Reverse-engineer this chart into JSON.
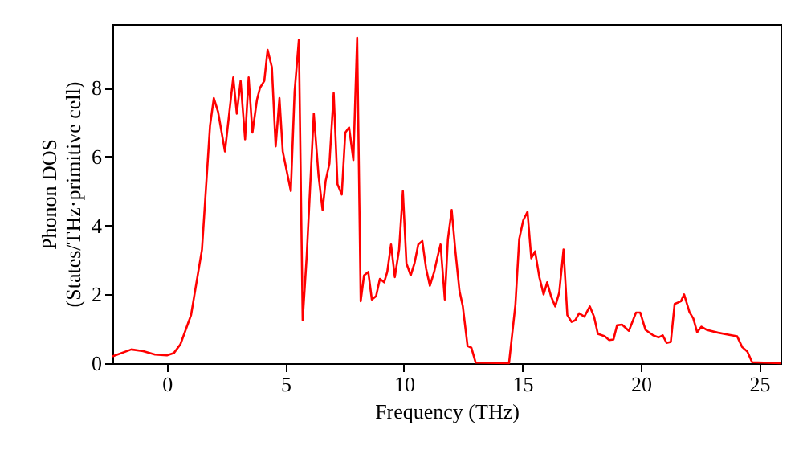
{
  "chart_data": {
    "type": "line",
    "xlabel": "Frequency (THz)",
    "ylabel": "Phonon DOS\n(States/THz·primitive cell)",
    "xlim": [
      -2.3,
      25.9
    ],
    "ylim": [
      0,
      9.85
    ],
    "xticks": [
      0,
      5,
      10,
      15,
      20,
      25
    ],
    "yticks": [
      0,
      2,
      4,
      6,
      8
    ],
    "grid": false,
    "line_style": "solid",
    "marker": "none",
    "series": [
      {
        "color": "#ff0000",
        "x": [
          -2.3,
          -1.5,
          -1,
          -0.5,
          0,
          0.3,
          0.57,
          1.02,
          1.48,
          1.82,
          1.98,
          2.16,
          2.45,
          2.8,
          2.95,
          3.11,
          3.3,
          3.45,
          3.61,
          3.8,
          3.93,
          4.11,
          4.25,
          4.43,
          4.59,
          4.75,
          4.89,
          5.23,
          5.39,
          5.57,
          5.73,
          5.9,
          6.2,
          6.4,
          6.57,
          6.7,
          6.86,
          7.04,
          7.2,
          7.38,
          7.53,
          7.69,
          7.87,
          8.03,
          8.18,
          8.32,
          8.5,
          8.65,
          8.83,
          8.99,
          9.17,
          9.3,
          9.46,
          9.62,
          9.8,
          9.96,
          10.11,
          10.29,
          10.45,
          10.61,
          10.78,
          10.94,
          11.1,
          11.28,
          11.41,
          11.55,
          11.73,
          11.86,
          12.02,
          12.17,
          12.35,
          12.49,
          12.69,
          12.85,
          13.03,
          14.44,
          14.71,
          14.87,
          15.04,
          15.22,
          15.38,
          15.54,
          15.72,
          15.9,
          16.05,
          16.21,
          16.39,
          16.56,
          16.74,
          16.9,
          17.08,
          17.24,
          17.4,
          17.62,
          17.85,
          18.03,
          18.19,
          18.48,
          18.67,
          18.85,
          19.0,
          19.21,
          19.5,
          19.8,
          19.98,
          20.2,
          20.52,
          20.75,
          20.93,
          21.09,
          21.27,
          21.43,
          21.7,
          21.83,
          22.06,
          22.22,
          22.38,
          22.56,
          22.78,
          23.24,
          23.69,
          24.07,
          24.28,
          24.5,
          24.7,
          25.9
        ],
        "values": [
          0.2,
          0.4,
          0.35,
          0.25,
          0.23,
          0.3,
          0.55,
          1.4,
          3.3,
          6.9,
          7.7,
          7.3,
          6.15,
          8.3,
          7.25,
          8.2,
          6.5,
          8.3,
          6.7,
          7.65,
          8.0,
          8.2,
          9.1,
          8.6,
          6.3,
          7.7,
          6.15,
          5.0,
          7.9,
          9.4,
          1.25,
          3.1,
          7.25,
          5.45,
          4.45,
          5.3,
          5.8,
          7.85,
          5.2,
          4.9,
          6.7,
          6.85,
          5.9,
          9.45,
          1.8,
          2.55,
          2.65,
          1.85,
          1.95,
          2.45,
          2.35,
          2.65,
          3.45,
          2.5,
          3.3,
          5.0,
          2.9,
          2.55,
          2.9,
          3.45,
          3.55,
          2.75,
          2.25,
          2.65,
          3.05,
          3.45,
          1.85,
          3.6,
          4.45,
          3.3,
          2.1,
          1.65,
          0.5,
          0.45,
          0.02,
          0,
          1.7,
          3.6,
          4.15,
          4.4,
          3.05,
          3.25,
          2.5,
          2.0,
          2.35,
          1.95,
          1.65,
          2.05,
          3.3,
          1.4,
          1.2,
          1.25,
          1.45,
          1.35,
          1.65,
          1.35,
          0.85,
          0.78,
          0.67,
          0.69,
          1.1,
          1.12,
          0.94,
          1.47,
          1.47,
          0.97,
          0.81,
          0.75,
          0.81,
          0.59,
          0.62,
          1.72,
          1.8,
          2.0,
          1.48,
          1.3,
          0.9,
          1.06,
          0.97,
          0.89,
          0.83,
          0.78,
          0.47,
          0.34,
          0.03,
          0
        ]
      }
    ]
  }
}
